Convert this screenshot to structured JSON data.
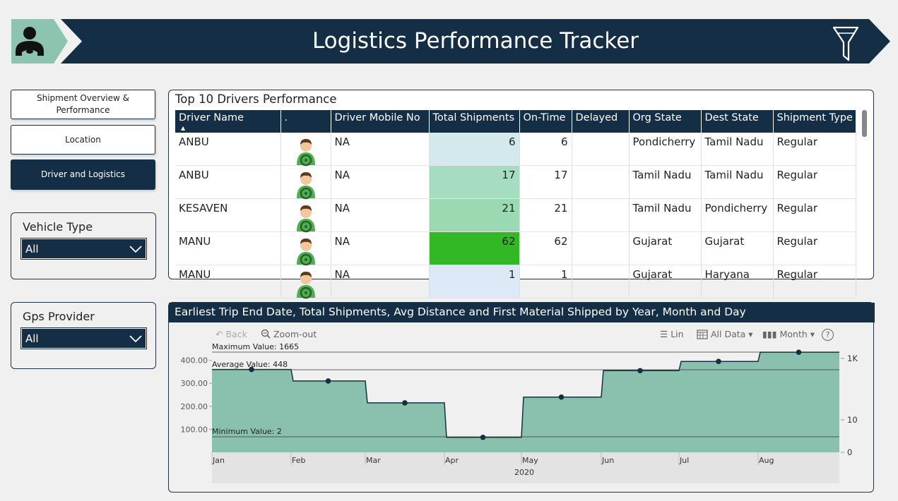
{
  "header": {
    "title": "Logistics Performance Tracker",
    "logo_icon": "driver-icon",
    "filter_icon": "funnel-icon",
    "bar_color": "#142f45",
    "logo_bg": "#8dc4b0"
  },
  "nav": [
    {
      "label": "Shipment Overview & Performance",
      "active": false
    },
    {
      "label": "Location",
      "active": false
    },
    {
      "label": "Driver and Logistics",
      "active": true
    }
  ],
  "slicers": {
    "vehicle_type": {
      "title": "Vehicle Type",
      "value": "All"
    },
    "gps_provider": {
      "title": "Gps Provider",
      "value": "All"
    }
  },
  "table": {
    "title": "Top 10 Drivers Performance",
    "columns": [
      "Driver Name",
      ".",
      "Driver Mobile No",
      "Total Shipments",
      "On-Time",
      "Delayed",
      "Org State",
      "Dest State",
      "Shipment Type"
    ],
    "rows": [
      {
        "name": "ANBU",
        "mobile": "NA",
        "total": "6",
        "ontime": "6",
        "delayed": "",
        "org": "Pondicherry",
        "dest": "Tamil Nadu",
        "type": "Regular",
        "heat": "#d3e9ec"
      },
      {
        "name": "ANBU",
        "mobile": "NA",
        "total": "17",
        "ontime": "17",
        "delayed": "",
        "org": "Tamil Nadu",
        "dest": "Tamil Nadu",
        "type": "Regular",
        "heat": "#a6dcbf"
      },
      {
        "name": "KESAVEN",
        "mobile": "NA",
        "total": "21",
        "ontime": "21",
        "delayed": "",
        "org": "Tamil Nadu",
        "dest": "Pondicherry",
        "type": "Regular",
        "heat": "#9bd9b3"
      },
      {
        "name": "MANU",
        "mobile": "NA",
        "total": "62",
        "ontime": "62",
        "delayed": "",
        "org": "Gujarat",
        "dest": "Gujarat",
        "type": "Regular",
        "heat": "#33b825"
      },
      {
        "name": "MANU",
        "mobile": "NA",
        "total": "1",
        "ontime": "1",
        "delayed": "",
        "org": "Gujarat",
        "dest": "Haryana",
        "type": "Regular",
        "heat": "#dde9f7"
      }
    ]
  },
  "chart_card": {
    "title": "Earliest Trip End Date, Total Shipments, Avg Distance and First Material Shipped by Year, Month and Day",
    "toolbar": {
      "back": "Back",
      "zoom_out": "Zoom-out",
      "lin": "Lin",
      "all_data": "All Data",
      "month": "Month",
      "help": "?"
    }
  },
  "chart_data": {
    "type": "area",
    "x": [
      "Jan",
      "Feb",
      "Mar",
      "Apr",
      "May",
      "Jun",
      "Jul",
      "Aug"
    ],
    "x_group": "2020",
    "values": [
      360,
      310,
      215,
      65,
      240,
      355,
      395,
      435
    ],
    "y_ticks": [
      "100.00",
      "200.00",
      "300.00",
      "400.00"
    ],
    "ylim": [
      0,
      460
    ],
    "y2_ticks": [
      "0",
      "10",
      "1K"
    ],
    "reference_lines": [
      {
        "label": "Maximum Value: 1665"
      },
      {
        "label": "Average Value: 448"
      },
      {
        "label": "Minimum Value: 2"
      }
    ],
    "area_color": "#89c1ae",
    "line_color": "#16303f",
    "grid": false
  }
}
